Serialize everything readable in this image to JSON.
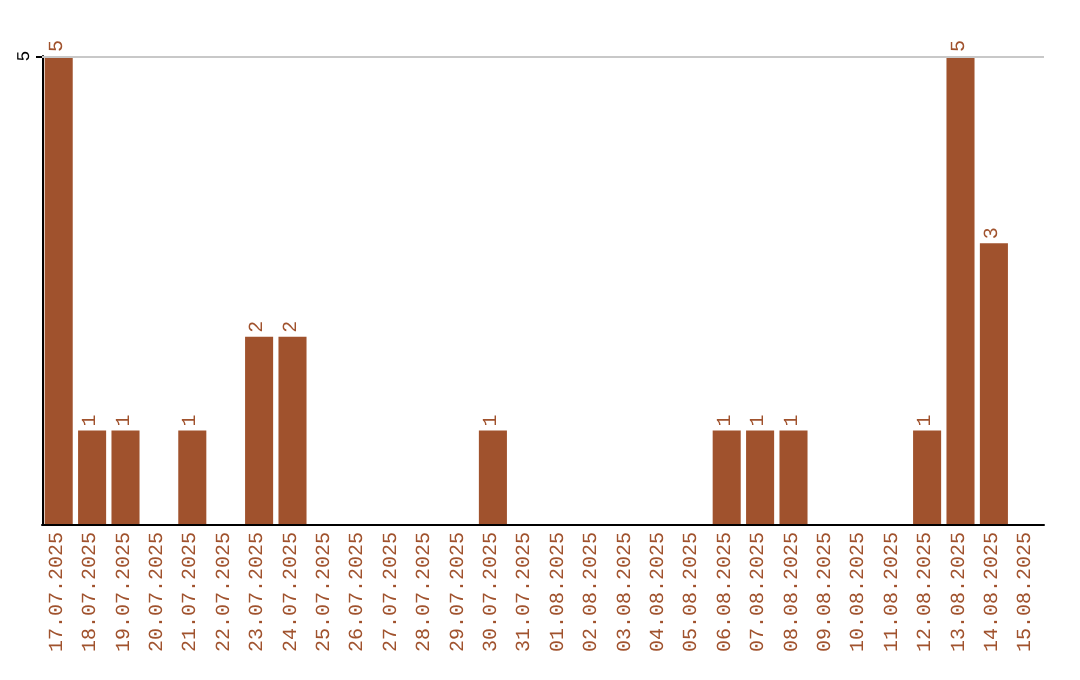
{
  "chart_data": {
    "type": "bar",
    "categories": [
      "17.07.2025",
      "18.07.2025",
      "19.07.2025",
      "20.07.2025",
      "21.07.2025",
      "22.07.2025",
      "23.07.2025",
      "24.07.2025",
      "25.07.2025",
      "26.07.2025",
      "27.07.2025",
      "28.07.2025",
      "29.07.2025",
      "30.07.2025",
      "31.07.2025",
      "01.08.2025",
      "02.08.2025",
      "03.08.2025",
      "04.08.2025",
      "05.08.2025",
      "06.08.2025",
      "07.08.2025",
      "08.08.2025",
      "09.08.2025",
      "10.08.2025",
      "11.08.2025",
      "12.08.2025",
      "13.08.2025",
      "14.08.2025",
      "15.08.2025"
    ],
    "values": [
      5,
      1,
      1,
      0,
      1,
      0,
      2,
      2,
      0,
      0,
      0,
      0,
      0,
      1,
      0,
      0,
      0,
      0,
      0,
      0,
      1,
      1,
      1,
      0,
      0,
      0,
      1,
      5,
      3,
      0
    ],
    "value_labels": [
      "5",
      "1",
      "1",
      null,
      "1",
      null,
      "2",
      "2",
      null,
      null,
      null,
      null,
      null,
      "1",
      null,
      null,
      null,
      null,
      null,
      null,
      "1",
      "1",
      "1",
      null,
      null,
      null,
      "1",
      "5",
      "3",
      null
    ],
    "color": "#a0522d",
    "ylim": [
      0,
      5
    ],
    "yticks": [
      5
    ],
    "ref_lines": [
      {
        "axis": "y",
        "value": 5,
        "color": "#c8c8c8"
      }
    ]
  }
}
